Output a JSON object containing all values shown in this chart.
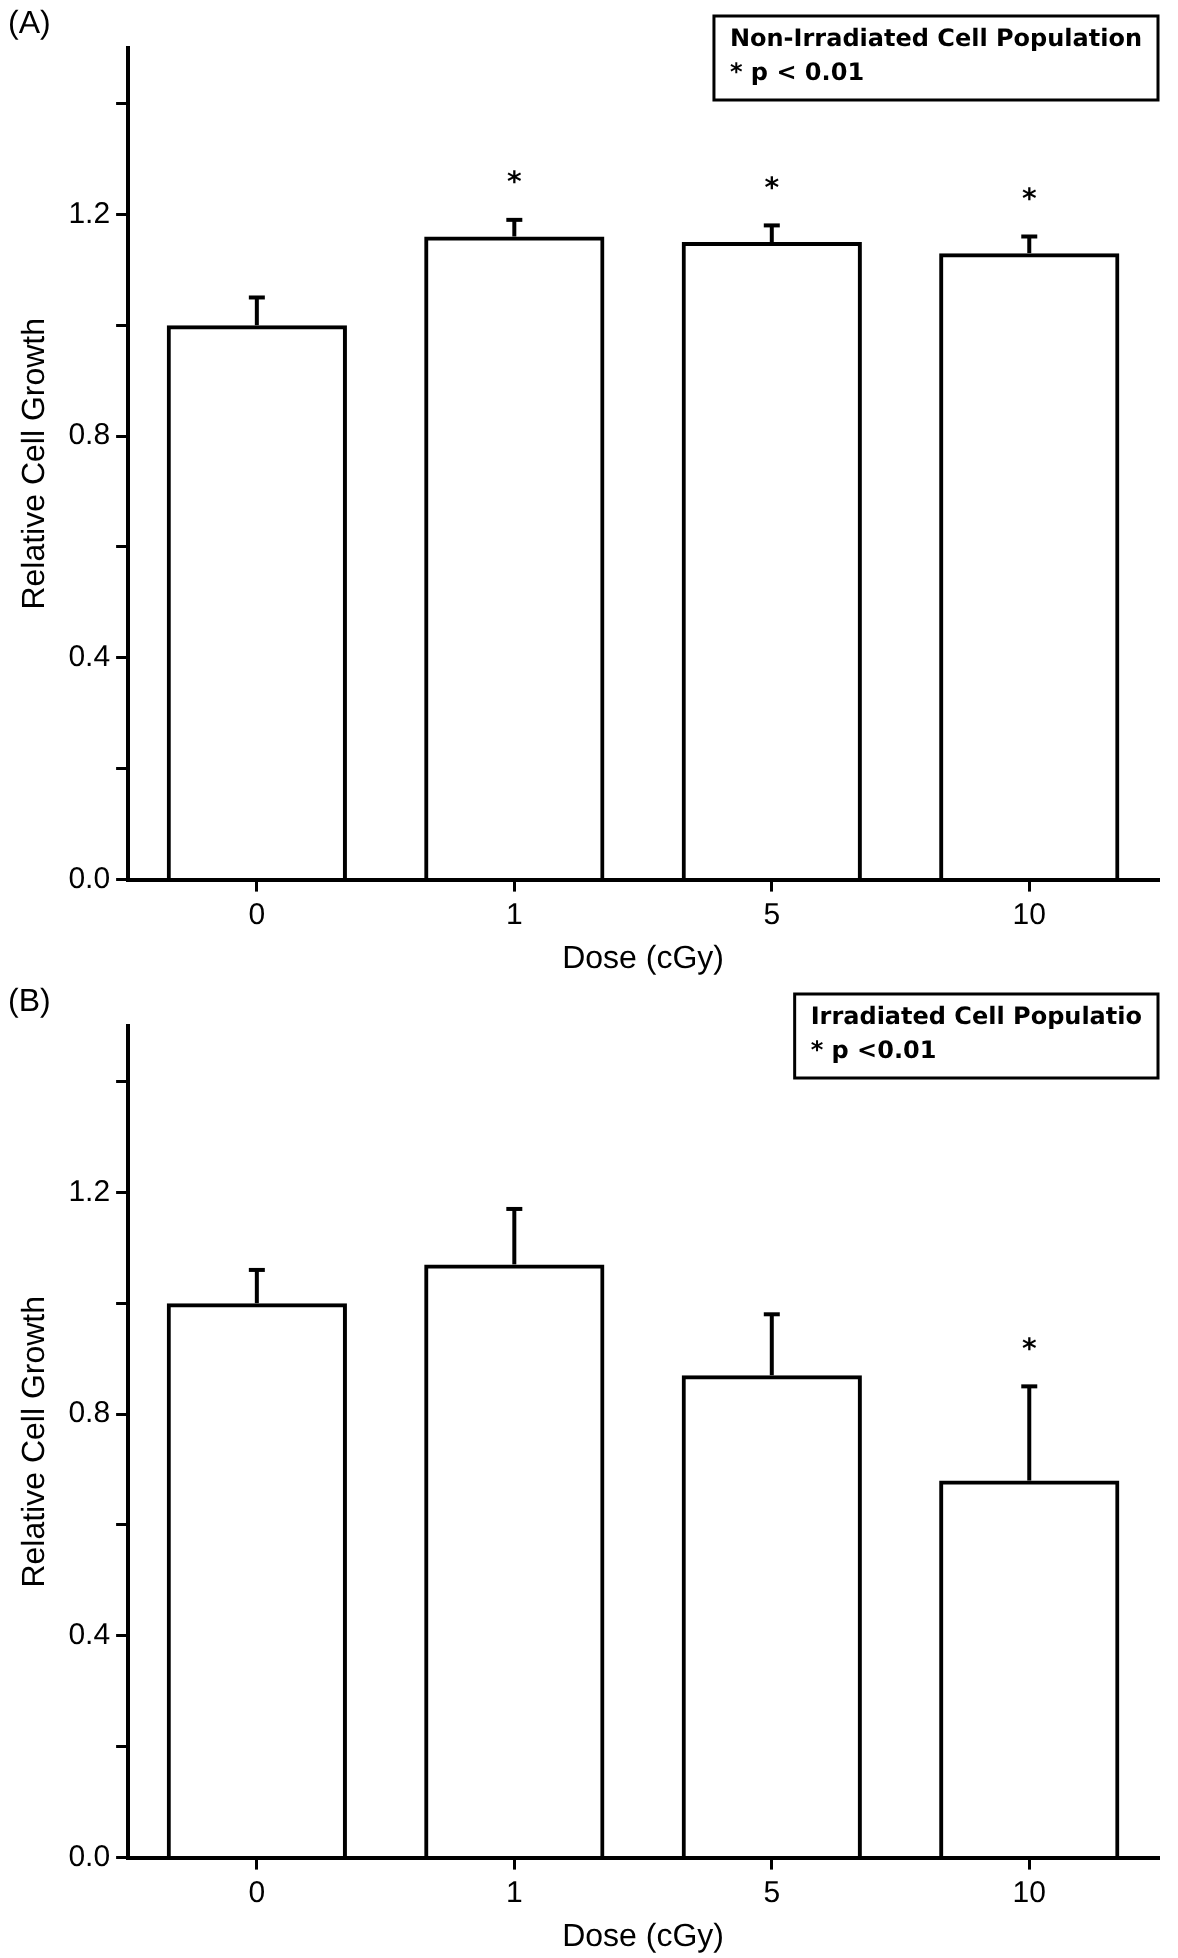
{
  "chart_data": [
    {
      "type": "bar",
      "title": "(A)",
      "xlabel": "Dose (cGy)",
      "ylabel": "Relative Cell Growth",
      "categories": [
        "0",
        "1",
        "5",
        "10"
      ],
      "values": [
        1.0,
        1.16,
        1.15,
        1.13
      ],
      "color": "#000000",
      "errors": [
        [
          1.0,
          1.05
        ],
        [
          1.16,
          1.19
        ],
        [
          1.15,
          1.18
        ],
        [
          1.13,
          1.16
        ]
      ],
      "ylim": [
        0,
        1.5
      ],
      "yticks": [
        {
          "value": 0,
          "label": "0.0"
        },
        {
          "value": 0.2,
          "label": null
        },
        {
          "value": 0.4,
          "label": "0.4"
        },
        {
          "value": 0.6,
          "label": null
        },
        {
          "value": 0.8,
          "label": "0.8"
        },
        {
          "value": 1.0,
          "label": null
        },
        {
          "value": 1.2,
          "label": "1.2"
        },
        {
          "value": 1.4,
          "label": null
        }
      ],
      "grid": false,
      "legend": false,
      "annotations": [
        "Non-Irradiated Cell Population",
        "* p < 0.01",
        {
          "text": "*",
          "x": "1",
          "y": 1.19
        },
        {
          "text": "*",
          "x": "5",
          "y": 1.18
        },
        {
          "text": "*",
          "x": "10",
          "y": 1.16
        }
      ]
    },
    {
      "type": "bar",
      "title": "(B)",
      "xlabel": "Dose (cGy)",
      "ylabel": "Relative Cell Growth",
      "categories": [
        "0",
        "1",
        "5",
        "10"
      ],
      "values": [
        1.0,
        1.07,
        0.87,
        0.68
      ],
      "color": "#000000",
      "errors": [
        [
          1.0,
          1.06
        ],
        [
          1.07,
          1.17
        ],
        [
          0.87,
          0.98
        ],
        [
          0.68,
          0.85
        ]
      ],
      "ylim": [
        0,
        1.5
      ],
      "yticks": [
        {
          "value": 0,
          "label": "0.0"
        },
        {
          "value": 0.2,
          "label": null
        },
        {
          "value": 0.4,
          "label": "0.4"
        },
        {
          "value": 0.6,
          "label": null
        },
        {
          "value": 0.8,
          "label": "0.8"
        },
        {
          "value": 1.0,
          "label": null
        },
        {
          "value": 1.2,
          "label": "1.2"
        },
        {
          "value": 1.4,
          "label": null
        }
      ],
      "grid": false,
      "legend": false,
      "annotations": [
        "Irradiated Cell Populatio",
        "* p <0.01",
        {
          "text": "*",
          "x": "10",
          "y": 0.85
        }
      ]
    }
  ]
}
